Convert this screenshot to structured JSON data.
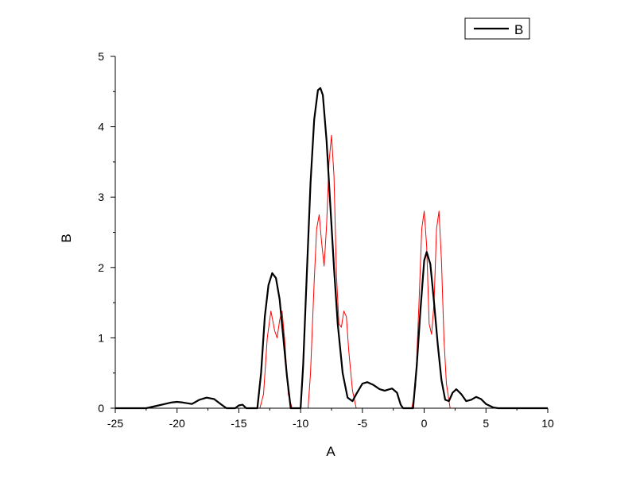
{
  "chart_data": {
    "type": "line",
    "title": "",
    "xlabel": "A",
    "ylabel": "B",
    "xlim": [
      -25,
      10
    ],
    "ylim": [
      0,
      5
    ],
    "x_ticks": [
      -25,
      -20,
      -15,
      -10,
      -5,
      0,
      5,
      10
    ],
    "y_ticks": [
      0,
      1,
      2,
      3,
      4,
      5
    ],
    "grid": false,
    "legend": {
      "position": "top-right",
      "entries": [
        "B"
      ]
    },
    "colors": {
      "series_b": "#000000",
      "series_red": "#ff0000",
      "axes": "#000000"
    },
    "series": [
      {
        "name": "B",
        "color": "#000000",
        "points": [
          [
            -25,
            0
          ],
          [
            -22.5,
            0
          ],
          [
            -21.5,
            0.04
          ],
          [
            -20.5,
            0.08
          ],
          [
            -20,
            0.09
          ],
          [
            -19.5,
            0.08
          ],
          [
            -18.8,
            0.06
          ],
          [
            -18.2,
            0.12
          ],
          [
            -17.6,
            0.15
          ],
          [
            -17,
            0.13
          ],
          [
            -16.4,
            0.05
          ],
          [
            -16,
            0
          ],
          [
            -15.3,
            0
          ],
          [
            -15,
            0.04
          ],
          [
            -14.7,
            0.05
          ],
          [
            -14.4,
            0
          ],
          [
            -13.5,
            0
          ],
          [
            -13.2,
            0.5
          ],
          [
            -12.9,
            1.3
          ],
          [
            -12.6,
            1.75
          ],
          [
            -12.3,
            1.92
          ],
          [
            -12,
            1.85
          ],
          [
            -11.7,
            1.55
          ],
          [
            -11.4,
            1.0
          ],
          [
            -11.1,
            0.45
          ],
          [
            -10.8,
            0
          ],
          [
            -10,
            0
          ],
          [
            -9.8,
            0.6
          ],
          [
            -9.5,
            1.9
          ],
          [
            -9.2,
            3.2
          ],
          [
            -8.9,
            4.1
          ],
          [
            -8.6,
            4.52
          ],
          [
            -8.4,
            4.55
          ],
          [
            -8.2,
            4.45
          ],
          [
            -7.9,
            3.8
          ],
          [
            -7.6,
            2.9
          ],
          [
            -7.3,
            2.0
          ],
          [
            -7.0,
            1.2
          ],
          [
            -6.6,
            0.5
          ],
          [
            -6.2,
            0.15
          ],
          [
            -5.8,
            0.1
          ],
          [
            -5.5,
            0.2
          ],
          [
            -5.0,
            0.35
          ],
          [
            -4.6,
            0.37
          ],
          [
            -4.1,
            0.33
          ],
          [
            -3.6,
            0.27
          ],
          [
            -3.2,
            0.25
          ],
          [
            -2.6,
            0.28
          ],
          [
            -2.2,
            0.22
          ],
          [
            -1.9,
            0.05
          ],
          [
            -1.7,
            0
          ],
          [
            -0.9,
            0
          ],
          [
            -0.6,
            0.6
          ],
          [
            -0.3,
            1.4
          ],
          [
            0,
            2.1
          ],
          [
            0.2,
            2.22
          ],
          [
            0.5,
            2.05
          ],
          [
            0.8,
            1.5
          ],
          [
            1.1,
            0.9
          ],
          [
            1.4,
            0.4
          ],
          [
            1.7,
            0.12
          ],
          [
            2.0,
            0.1
          ],
          [
            2.3,
            0.22
          ],
          [
            2.6,
            0.27
          ],
          [
            3.0,
            0.2
          ],
          [
            3.4,
            0.1
          ],
          [
            3.8,
            0.12
          ],
          [
            4.2,
            0.16
          ],
          [
            4.6,
            0.13
          ],
          [
            5.0,
            0.06
          ],
          [
            5.6,
            0.01
          ],
          [
            6.0,
            0
          ],
          [
            10,
            0
          ]
        ]
      },
      {
        "name": "",
        "color": "#ff0000",
        "points": [
          [
            -25,
            0
          ],
          [
            -13.3,
            0
          ],
          [
            -13.0,
            0.2
          ],
          [
            -12.7,
            1.0
          ],
          [
            -12.4,
            1.38
          ],
          [
            -12.1,
            1.1
          ],
          [
            -11.9,
            1.0
          ],
          [
            -11.7,
            1.25
          ],
          [
            -11.5,
            1.38
          ],
          [
            -11.3,
            1.0
          ],
          [
            -11.0,
            0.2
          ],
          [
            -10.7,
            0
          ],
          [
            -9.4,
            0
          ],
          [
            -9.2,
            0.5
          ],
          [
            -8.9,
            1.8
          ],
          [
            -8.7,
            2.55
          ],
          [
            -8.5,
            2.75
          ],
          [
            -8.3,
            2.35
          ],
          [
            -8.1,
            2.02
          ],
          [
            -7.9,
            2.6
          ],
          [
            -7.7,
            3.5
          ],
          [
            -7.5,
            3.88
          ],
          [
            -7.3,
            3.3
          ],
          [
            -7.1,
            1.9
          ],
          [
            -6.9,
            1.2
          ],
          [
            -6.7,
            1.15
          ],
          [
            -6.5,
            1.38
          ],
          [
            -6.3,
            1.3
          ],
          [
            -6.1,
            0.8
          ],
          [
            -5.8,
            0.25
          ],
          [
            -5.5,
            0
          ],
          [
            -1.0,
            0
          ],
          [
            -0.7,
            0.3
          ],
          [
            -0.4,
            1.6
          ],
          [
            -0.2,
            2.55
          ],
          [
            0,
            2.8
          ],
          [
            0.2,
            2.3
          ],
          [
            0.4,
            1.2
          ],
          [
            0.6,
            1.05
          ],
          [
            0.8,
            1.5
          ],
          [
            1.0,
            2.55
          ],
          [
            1.2,
            2.8
          ],
          [
            1.4,
            2.1
          ],
          [
            1.6,
            1.0
          ],
          [
            1.8,
            0.35
          ],
          [
            2.1,
            0
          ],
          [
            10,
            0
          ]
        ]
      }
    ]
  }
}
